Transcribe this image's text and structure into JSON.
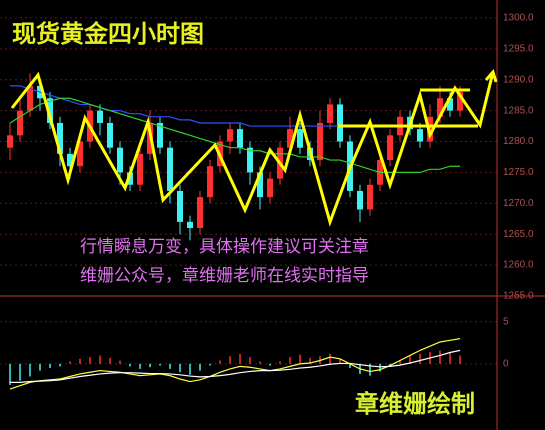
{
  "chart_data": {
    "type": "candlestick",
    "title": "现货黄金四小时图",
    "annotations": [
      "行情瞬息万变，具体操作建议可关注章",
      "维姗公众号，章维姗老师在线实时指导"
    ],
    "author": "章维姗绘制",
    "up_color": "#ff3030",
    "down_color": "#40f0f0",
    "open": [
      1279,
      1281,
      1285,
      1289,
      1287,
      1283,
      1278,
      1276,
      1280,
      1285,
      1283,
      1279,
      1275,
      1273,
      1278,
      1283,
      1279,
      1272,
      1267,
      1266,
      1271,
      1276,
      1280,
      1282,
      1279,
      1275,
      1271,
      1274,
      1279,
      1282,
      1279,
      1277,
      1283,
      1286,
      1280,
      1272,
      1269,
      1273,
      1277,
      1281,
      1284,
      1282,
      1280,
      1284,
      1287,
      1285
    ],
    "high": [
      1283,
      1287,
      1291,
      1290,
      1288,
      1284,
      1279,
      1281,
      1286,
      1286,
      1284,
      1280,
      1276,
      1279,
      1285,
      1284,
      1280,
      1273,
      1268,
      1272,
      1277,
      1281,
      1283,
      1283,
      1280,
      1276,
      1275,
      1280,
      1284,
      1283,
      1280,
      1285,
      1287,
      1287,
      1281,
      1273,
      1274,
      1278,
      1282,
      1285,
      1285,
      1283,
      1286,
      1289,
      1288,
      1289
    ],
    "low": [
      1277,
      1280,
      1284,
      1285,
      1282,
      1276,
      1274,
      1275,
      1279,
      1281,
      1278,
      1273,
      1272,
      1272,
      1277,
      1278,
      1270,
      1265,
      1264,
      1265,
      1270,
      1275,
      1278,
      1278,
      1273,
      1269,
      1270,
      1273,
      1278,
      1278,
      1276,
      1276,
      1282,
      1279,
      1271,
      1267,
      1268,
      1272,
      1276,
      1280,
      1281,
      1279,
      1279,
      1283,
      1284,
      1284
    ],
    "close": [
      1281,
      1285,
      1289,
      1287,
      1283,
      1278,
      1276,
      1280,
      1285,
      1283,
      1279,
      1275,
      1273,
      1278,
      1283,
      1279,
      1272,
      1267,
      1266,
      1271,
      1276,
      1280,
      1282,
      1279,
      1275,
      1271,
      1274,
      1279,
      1282,
      1279,
      1277,
      1283,
      1286,
      1280,
      1272,
      1269,
      1273,
      1277,
      1281,
      1284,
      1282,
      1280,
      1284,
      1287,
      1285,
      1288
    ],
    "moving_averages": [
      {
        "color": "#3050ff",
        "values": [
          1289,
          1289,
          1288.5,
          1288,
          1287.5,
          1287,
          1286.5,
          1286,
          1286,
          1285.5,
          1285,
          1285,
          1284.5,
          1284.5,
          1284,
          1284,
          1284,
          1283.5,
          1283.5,
          1283,
          1283,
          1283,
          1283,
          1283,
          1282.5,
          1282.5,
          1282.5,
          1282.5,
          1282.5,
          1282.5,
          1282.5,
          1282.5,
          1282.5,
          1282.5,
          1282.5,
          1282.5,
          1282.5,
          1282.5,
          1282.5,
          1282.5,
          1282.5,
          1282.5,
          1282.5,
          1282.5,
          1282.5,
          1282.5
        ]
      },
      {
        "color": "#30d030",
        "values": [
          1283,
          1284,
          1285,
          1286,
          1286.5,
          1287,
          1287,
          1286.5,
          1286,
          1285.5,
          1285,
          1284.5,
          1284,
          1283.5,
          1283,
          1282.5,
          1282,
          1281.5,
          1281,
          1280.5,
          1280,
          1279.5,
          1279,
          1279,
          1278.5,
          1278.5,
          1278,
          1278,
          1278,
          1277.5,
          1277.5,
          1277.5,
          1277,
          1277,
          1276.5,
          1276,
          1275.5,
          1275,
          1275,
          1275,
          1275,
          1275,
          1275.5,
          1275.5,
          1276,
          1276
        ]
      }
    ],
    "ylim": [
      1255,
      1302.9
    ],
    "yticks": [
      {
        "value": 1255,
        "label": "1255.0"
      },
      {
        "value": 1260,
        "label": "1260.0"
      },
      {
        "value": 1265,
        "label": "1265.0"
      },
      {
        "value": 1270,
        "label": "1270.0"
      },
      {
        "value": 1275,
        "label": "1275.0"
      },
      {
        "value": 1280,
        "label": "1280.0"
      },
      {
        "value": 1285,
        "label": "1285.0"
      },
      {
        "value": 1290,
        "label": "1290.0"
      },
      {
        "value": 1295,
        "label": "1295.0"
      },
      {
        "value": 1300,
        "label": "1300.0"
      }
    ],
    "macd": {
      "ylim": [
        -3.7,
        6.4
      ],
      "yticks": [
        0,
        5
      ],
      "hist": [
        -2.5,
        -2,
        -1.5,
        -0.8,
        -0.5,
        -0.3,
        0.3,
        0.6,
        0.8,
        1,
        0.7,
        0.4,
        -0.3,
        -0.6,
        -0.4,
        -0.2,
        -0.6,
        -1,
        -1.3,
        -0.8,
        -0.2,
        0.4,
        0.9,
        1.2,
        0.8,
        0.3,
        -0.2,
        0.3,
        0.8,
        1.1,
        0.7,
        0.9,
        1.2,
        0.6,
        -0.5,
        -1.2,
        -1.4,
        -0.9,
        -0.3,
        0.4,
        0.9,
        1.2,
        1.4,
        1.6,
        1.3,
        1
      ],
      "dif": {
        "color": "#ffff40",
        "values": [
          -3,
          -2.6,
          -2.2,
          -2,
          -1.9,
          -1.8,
          -1.5,
          -1.2,
          -1,
          -0.8,
          -0.9,
          -1,
          -1.2,
          -1.4,
          -1.3,
          -1.2,
          -1.4,
          -1.8,
          -2.1,
          -1.9,
          -1.5,
          -1,
          -0.6,
          -0.3,
          -0.4,
          -0.6,
          -0.8,
          -0.6,
          -0.3,
          0,
          0.1,
          0.4,
          0.8,
          0.6,
          0,
          -0.6,
          -0.9,
          -0.7,
          -0.2,
          0.4,
          1,
          1.6,
          2.1,
          2.6,
          2.8,
          3
        ]
      },
      "dea": {
        "color": "#ffffff",
        "values": [
          -2.2,
          -2.2,
          -2.1,
          -2.05,
          -2,
          -1.9,
          -1.7,
          -1.5,
          -1.35,
          -1.2,
          -1.1,
          -1.05,
          -1.05,
          -1.1,
          -1.15,
          -1.15,
          -1.2,
          -1.3,
          -1.45,
          -1.55,
          -1.5,
          -1.4,
          -1.25,
          -1.05,
          -0.9,
          -0.8,
          -0.8,
          -0.75,
          -0.65,
          -0.5,
          -0.4,
          -0.25,
          -0.05,
          0.05,
          0.05,
          -0.1,
          -0.25,
          -0.35,
          -0.3,
          -0.15,
          0.1,
          0.4,
          0.7,
          1,
          1.35,
          1.6
        ]
      }
    }
  }
}
